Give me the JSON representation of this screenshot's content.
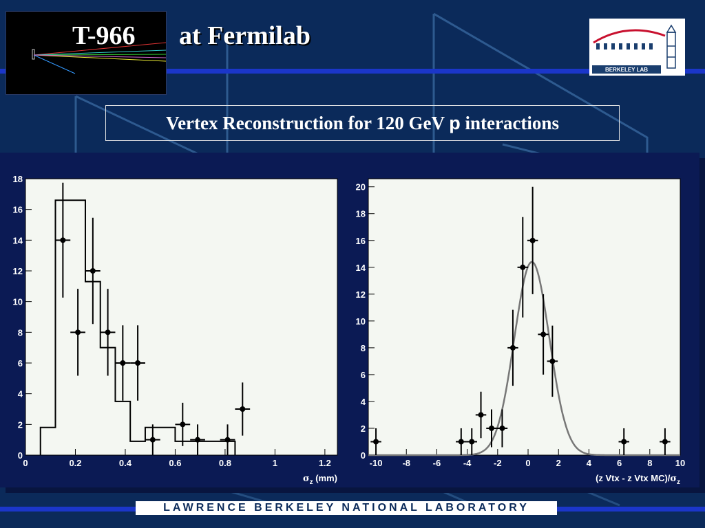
{
  "header": {
    "title_part1": "T-966",
    "title_part2": "at Fermilab",
    "logo_text": "BERKELEY LAB"
  },
  "subtitle": {
    "prefix": "Vertex Reconstruction for 120 GeV ",
    "particle": "p",
    "suffix": " interactions"
  },
  "footer": {
    "text": "LAWRENCE BERKELEY NATIONAL LABORATORY"
  },
  "colors": {
    "background": "#0b2a5a",
    "accent_line": "#1b36c9",
    "panel": "#0b1a54",
    "plot_bg": "#f4f7f2",
    "fit_curve": "#777777"
  },
  "chart_data": [
    {
      "type": "histogram",
      "xlabel_sym": "σ",
      "xlabel_sub": "z",
      "xlabel_suffix": " (mm)",
      "xlim": [
        0,
        1.25
      ],
      "ylim": [
        0,
        18
      ],
      "xticks": [
        0,
        0.2,
        0.4,
        0.6,
        0.8,
        1,
        1.2
      ],
      "xtick_labels": [
        "0",
        "0.2",
        "0.4",
        "0.6",
        "0.8",
        "1",
        "1.2"
      ],
      "yticks": [
        0,
        2,
        4,
        6,
        8,
        10,
        12,
        14,
        16,
        18
      ],
      "ytick_labels": [
        "0",
        "2",
        "4",
        "6",
        "8",
        "10",
        "12",
        "14",
        "16",
        "18"
      ],
      "histogram": {
        "bin_edges": [
          0.06,
          0.12,
          0.24,
          0.3,
          0.36,
          0.42,
          0.48,
          0.6,
          0.66,
          0.72,
          0.78,
          0.84
        ],
        "values": [
          1.8,
          16.6,
          11.3,
          7.0,
          3.5,
          0.9,
          1.8,
          0.9,
          0.9,
          0.9,
          0.9
        ]
      },
      "points": {
        "x": [
          0.15,
          0.21,
          0.27,
          0.33,
          0.39,
          0.45,
          0.51,
          0.63,
          0.69,
          0.81,
          0.87
        ],
        "y": [
          14,
          8,
          12,
          8,
          6,
          6,
          1,
          2,
          1,
          1,
          3
        ],
        "yerr": [
          3.74,
          2.83,
          3.46,
          2.83,
          2.45,
          2.45,
          1,
          1.41,
          1,
          1,
          1.73
        ],
        "xerr": 0.03
      }
    },
    {
      "type": "scatter",
      "xlabel_prefix": "(z Vtx - z Vtx MC)/",
      "xlabel_sym": "σ",
      "xlabel_sub": "z",
      "xlim": [
        -10.5,
        10
      ],
      "ylim": [
        0,
        20.6
      ],
      "xticks": [
        -10,
        -8,
        -6,
        -4,
        -2,
        0,
        2,
        4,
        6,
        8,
        10
      ],
      "xtick_labels": [
        "-10",
        "-8",
        "-6",
        "-4",
        "-2",
        "0",
        "2",
        "4",
        "6",
        "8",
        "10"
      ],
      "yticks": [
        0,
        2,
        4,
        6,
        8,
        10,
        12,
        14,
        16,
        18,
        20
      ],
      "ytick_labels": [
        "0",
        "2",
        "4",
        "6",
        "8",
        "10",
        "12",
        "14",
        "16",
        "18",
        "20"
      ],
      "points": {
        "x": [
          -10,
          -4.4,
          -3.7,
          -3.1,
          -2.4,
          -1.7,
          -1.0,
          -0.35,
          0.3,
          1.0,
          1.6,
          6.3,
          9.0
        ],
        "y": [
          1,
          1,
          1,
          3,
          2,
          2,
          8,
          14,
          16,
          9,
          7,
          1,
          1
        ],
        "yerr": [
          1,
          1,
          1,
          1.73,
          1.41,
          1.41,
          2.83,
          3.74,
          4.0,
          3.0,
          2.65,
          1,
          1
        ],
        "xerr": 0.35
      },
      "fit": {
        "type": "gaussian",
        "amplitude": 14.4,
        "mean": 0.25,
        "sigma": 1.15
      }
    }
  ]
}
